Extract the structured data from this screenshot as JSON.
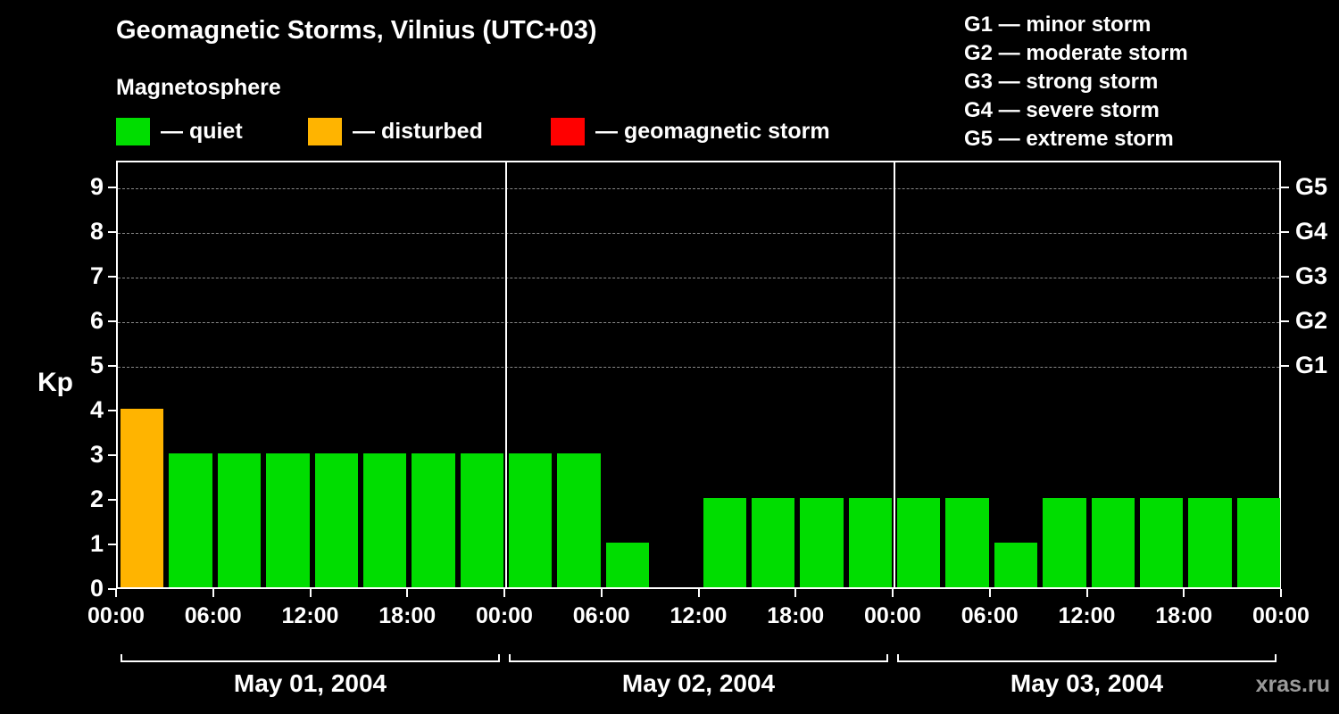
{
  "title": "Geomagnetic Storms, Vilnius (UTC+03)",
  "subtitle": "Magnetosphere",
  "legend": {
    "quiet": {
      "label": "— quiet",
      "color": "#00dd00"
    },
    "disturbed": {
      "label": "— disturbed",
      "color": "#ffb400"
    },
    "storm": {
      "label": "— geomagnetic storm",
      "color": "#ff0000"
    }
  },
  "g_scale_legend": [
    "G1 — minor storm",
    "G2 — moderate storm",
    "G3 — strong storm",
    "G4 — severe storm",
    "G5 — extreme storm"
  ],
  "watermark": "xras.ru",
  "chart_data": {
    "type": "bar",
    "title": "Geomagnetic Storms, Vilnius (UTC+03)",
    "ylabel": "Kp",
    "ylim": [
      0,
      9.6
    ],
    "hours_per_bar": 3,
    "grid": "dashed horizontal at G-levels",
    "y_ticks": [
      0,
      1,
      2,
      3,
      4,
      5,
      6,
      7,
      8,
      9
    ],
    "gridlines_at": [
      5,
      6,
      7,
      8,
      9
    ],
    "right_axis": [
      {
        "value": 9,
        "label": "G5"
      },
      {
        "value": 8,
        "label": "G4"
      },
      {
        "value": 7,
        "label": "G3"
      },
      {
        "value": 6,
        "label": "G2"
      },
      {
        "value": 5,
        "label": "G1"
      }
    ],
    "x_ticks": [
      {
        "hour": 0,
        "label": "00:00"
      },
      {
        "hour": 6,
        "label": "06:00"
      },
      {
        "hour": 12,
        "label": "12:00"
      },
      {
        "hour": 18,
        "label": "18:00"
      },
      {
        "hour": 24,
        "label": "00:00"
      },
      {
        "hour": 30,
        "label": "06:00"
      },
      {
        "hour": 36,
        "label": "12:00"
      },
      {
        "hour": 42,
        "label": "18:00"
      },
      {
        "hour": 48,
        "label": "00:00"
      },
      {
        "hour": 54,
        "label": "06:00"
      },
      {
        "hour": 60,
        "label": "12:00"
      },
      {
        "hour": 66,
        "label": "18:00"
      },
      {
        "hour": 72,
        "label": "00:00"
      }
    ],
    "days": [
      {
        "date": "May 01, 2004",
        "kp": [
          4,
          3,
          3,
          3,
          3,
          3,
          3,
          3
        ]
      },
      {
        "date": "May 02, 2004",
        "kp": [
          3,
          3,
          1,
          0,
          2,
          2,
          2,
          2
        ]
      },
      {
        "date": "May 03, 2004",
        "kp": [
          2,
          2,
          1,
          2,
          2,
          2,
          2,
          2
        ]
      }
    ],
    "colors": {
      "quiet": "#00dd00",
      "disturbed": "#ffb400",
      "storm": "#ff0000"
    },
    "color_rule": {
      "quiet_max": 3,
      "disturbed": 4,
      "storm_min": 5
    }
  }
}
